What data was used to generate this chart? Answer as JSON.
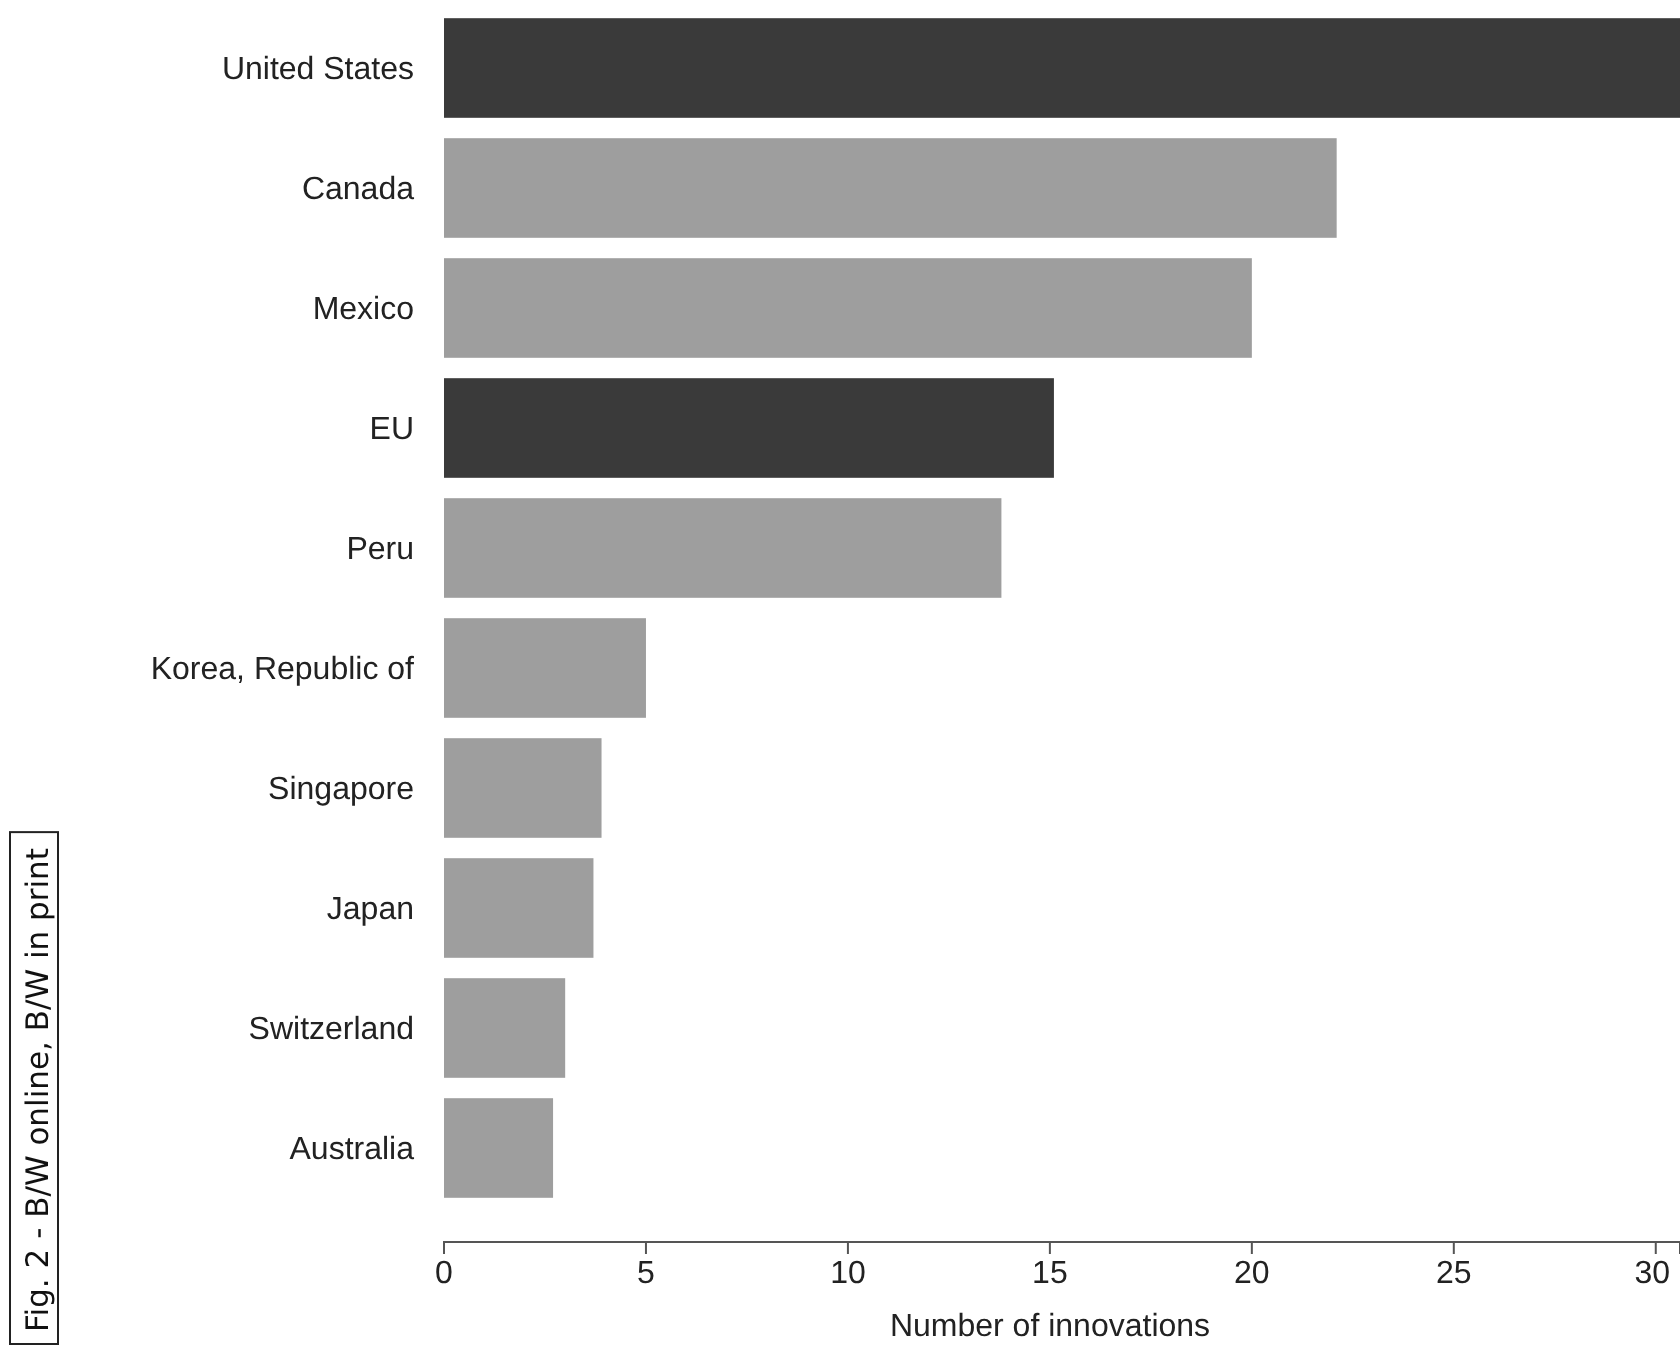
{
  "chart_data": {
    "type": "bar",
    "orientation": "horizontal",
    "xlabel": "Number of innovations",
    "categories": [
      "United States",
      "Canada",
      "Mexico",
      "EU",
      "Peru",
      "Korea, Republic of",
      "Singapore",
      "Japan",
      "Switzerland",
      "Australia"
    ],
    "values": [
      30.6,
      22.1,
      20.0,
      15.1,
      13.8,
      5.0,
      3.9,
      3.7,
      3.0,
      2.7
    ],
    "colors": [
      "#3a3a3a",
      "#9e9e9e",
      "#9e9e9e",
      "#3a3a3a",
      "#9e9e9e",
      "#9e9e9e",
      "#9e9e9e",
      "#9e9e9e",
      "#9e9e9e",
      "#9e9e9e"
    ],
    "xlim": [
      0,
      30.6
    ],
    "xticks": [
      0,
      5,
      10,
      15,
      20,
      25,
      30
    ],
    "grid": false,
    "annotations": [
      "Fig. 2 - B/W online, B/W in print"
    ]
  }
}
